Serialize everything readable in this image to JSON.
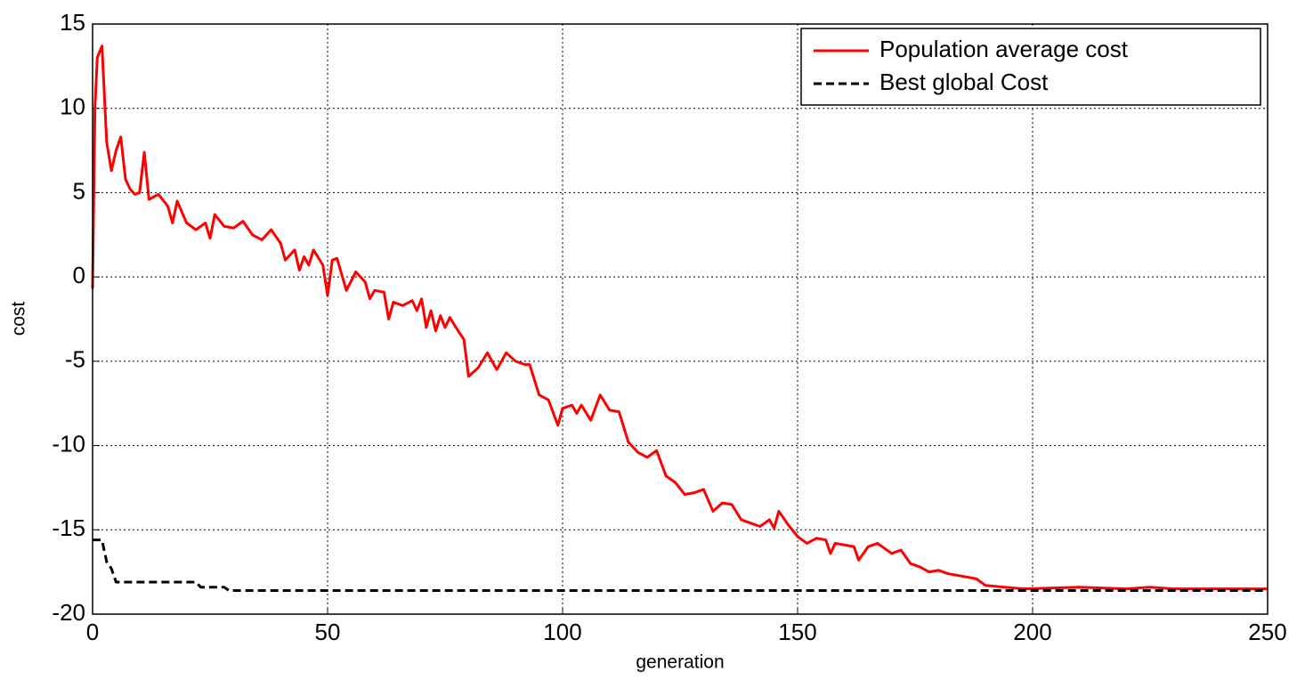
{
  "chart_data": {
    "type": "line",
    "x_label": "generation",
    "y_label": "cost",
    "xlim": [
      0,
      250
    ],
    "ylim": [
      -20,
      15
    ],
    "xticks": [
      0,
      50,
      100,
      150,
      200,
      250
    ],
    "yticks": [
      -20,
      -15,
      -10,
      -5,
      0,
      5,
      10,
      15
    ],
    "grid": true,
    "legend_position": "upper right",
    "series": [
      {
        "name": "Population average cost",
        "color": "#ff0000",
        "style": "solid",
        "x": [
          0,
          0.5,
          1,
          2,
          3,
          4,
          5,
          6,
          7,
          8,
          9,
          10,
          11,
          12,
          14,
          16,
          17,
          18,
          20,
          22,
          24,
          25,
          26,
          28,
          30,
          32,
          34,
          36,
          38,
          40,
          41,
          43,
          44,
          45,
          46,
          47,
          49,
          50,
          51,
          52,
          54,
          56,
          58,
          59,
          60,
          62,
          63,
          64,
          66,
          68,
          69,
          70,
          71,
          72,
          73,
          74,
          75,
          76,
          78,
          79,
          80,
          82,
          84,
          86,
          88,
          90,
          92,
          93,
          95,
          97,
          99,
          100,
          102,
          103,
          104,
          106,
          108,
          110,
          112,
          114,
          116,
          118,
          120,
          122,
          124,
          126,
          128,
          130,
          132,
          134,
          136,
          138,
          140,
          142,
          144,
          145,
          146,
          148,
          150,
          152,
          154,
          156,
          157,
          158,
          160,
          162,
          163,
          165,
          167,
          170,
          172,
          174,
          176,
          178,
          180,
          182,
          184,
          186,
          188,
          190,
          194,
          198,
          210,
          220,
          225,
          230,
          250
        ],
        "values": [
          -0.7,
          10,
          13,
          13.7,
          8,
          6.3,
          7.5,
          8.3,
          5.8,
          5.2,
          4.9,
          5,
          7.4,
          4.6,
          4.9,
          4.2,
          3.2,
          4.5,
          3.2,
          2.8,
          3.2,
          2.3,
          3.7,
          3,
          2.9,
          3.3,
          2.5,
          2.2,
          2.8,
          2,
          1,
          1.6,
          0.4,
          1.2,
          0.7,
          1.6,
          0.7,
          -1.1,
          1,
          1.1,
          -0.8,
          0.3,
          -0.3,
          -1.3,
          -0.8,
          -0.9,
          -2.5,
          -1.5,
          -1.7,
          -1.4,
          -2,
          -1.3,
          -3,
          -2,
          -3.2,
          -2.3,
          -3,
          -2.4,
          -3.3,
          -3.7,
          -5.9,
          -5.4,
          -4.5,
          -5.5,
          -4.5,
          -5,
          -5.2,
          -5.2,
          -7,
          -7.3,
          -8.8,
          -7.8,
          -7.6,
          -8.1,
          -7.6,
          -8.5,
          -7,
          -7.9,
          -8,
          -9.8,
          -10.4,
          -10.7,
          -10.3,
          -11.8,
          -12.2,
          -12.9,
          -12.8,
          -12.6,
          -13.9,
          -13.4,
          -13.5,
          -14.4,
          -14.6,
          -14.8,
          -14.4,
          -14.9,
          -13.9,
          -14.7,
          -15.4,
          -15.8,
          -15.5,
          -15.6,
          -16.4,
          -15.8,
          -15.9,
          -16,
          -16.8,
          -16,
          -15.8,
          -16.4,
          -16.2,
          -17,
          -17.2,
          -17.5,
          -17.4,
          -17.6,
          -17.7,
          -17.8,
          -17.9,
          -18.3,
          -18.4,
          -18.5,
          -18.4,
          -18.5,
          -18.4,
          -18.5,
          -18.5
        ]
      },
      {
        "name": "Best global Cost",
        "color": "#000000",
        "style": "dashed",
        "x": [
          0,
          2,
          3,
          4,
          5,
          22,
          23,
          28,
          29,
          250
        ],
        "values": [
          -15.6,
          -15.6,
          -16.9,
          -17.3,
          -18.1,
          -18.1,
          -18.4,
          -18.4,
          -18.6,
          -18.6
        ]
      }
    ]
  }
}
